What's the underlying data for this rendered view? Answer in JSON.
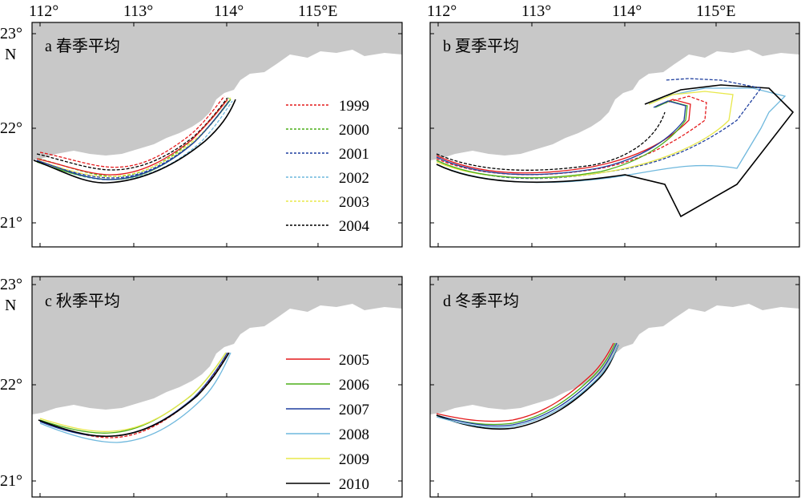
{
  "figure": {
    "x_ticks": [
      "112°",
      "113°",
      "114°",
      "115°E"
    ],
    "y_ticks": [
      "23°",
      "22°",
      "21°"
    ],
    "y_unit": "N"
  },
  "panels": [
    {
      "id": "a",
      "title": "a 春季平均"
    },
    {
      "id": "b",
      "title": "b 夏季平均"
    },
    {
      "id": "c",
      "title": "c 秋季平均"
    },
    {
      "id": "d",
      "title": "d 冬季平均"
    }
  ],
  "legend_dashed": [
    {
      "year": "1999",
      "color": "#e41a1c"
    },
    {
      "year": "2000",
      "color": "#4daf1a"
    },
    {
      "year": "2001",
      "color": "#1f3f9f"
    },
    {
      "year": "2002",
      "color": "#6fb8dd"
    },
    {
      "year": "2003",
      "color": "#e8e84a"
    },
    {
      "year": "2004",
      "color": "#000000"
    }
  ],
  "legend_solid": [
    {
      "year": "2005",
      "color": "#e41a1c"
    },
    {
      "year": "2006",
      "color": "#4daf1a"
    },
    {
      "year": "2007",
      "color": "#1f3f9f"
    },
    {
      "year": "2008",
      "color": "#6fb8dd"
    },
    {
      "year": "2009",
      "color": "#e8e84a"
    },
    {
      "year": "2010",
      "color": "#000000"
    }
  ],
  "colors": {
    "land": "#c8c8c8",
    "sea": "#ffffff",
    "frame": "#000000"
  }
}
